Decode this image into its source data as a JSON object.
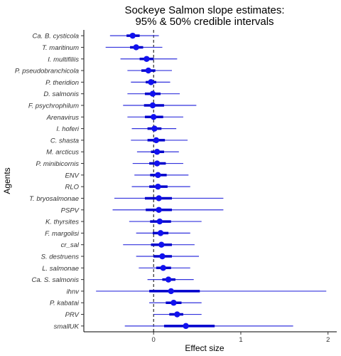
{
  "chart_data": {
    "type": "forest",
    "title_lines": [
      "Sockeye Salmon slope estimates:",
      "95% & 50% credible intervals"
    ],
    "xlabel": "Effect size",
    "ylabel": "Agents",
    "xlim": [
      -0.8,
      2.1
    ],
    "xticks": [
      0,
      1,
      2
    ],
    "reference_line": 0,
    "colors": {
      "point": "#1111ee",
      "thin": "#3333dd",
      "thick": "#0000cc"
    },
    "agents": [
      {
        "name": "Ca. B. cysticola",
        "median": -0.24,
        "ci95": [
          -0.5,
          0.06
        ],
        "ci50": [
          -0.31,
          -0.16
        ]
      },
      {
        "name": "T. maritinum",
        "median": -0.2,
        "ci95": [
          -0.55,
          0.1
        ],
        "ci50": [
          -0.27,
          -0.12
        ]
      },
      {
        "name": "I. multifiliis",
        "median": -0.08,
        "ci95": [
          -0.38,
          0.27
        ],
        "ci50": [
          -0.16,
          0.0
        ]
      },
      {
        "name": "P. pseudobranchicola",
        "median": -0.06,
        "ci95": [
          -0.3,
          0.21
        ],
        "ci50": [
          -0.14,
          0.02
        ]
      },
      {
        "name": "P. theridion",
        "median": -0.03,
        "ci95": [
          -0.26,
          0.19
        ],
        "ci50": [
          -0.09,
          0.03
        ]
      },
      {
        "name": "D. salmonis",
        "median": -0.01,
        "ci95": [
          -0.3,
          0.3
        ],
        "ci50": [
          -0.1,
          0.08
        ]
      },
      {
        "name": "F. psychrophilum",
        "median": -0.01,
        "ci95": [
          -0.35,
          0.49
        ],
        "ci50": [
          -0.11,
          0.12
        ]
      },
      {
        "name": "Arenavirus",
        "median": 0.0,
        "ci95": [
          -0.3,
          0.34
        ],
        "ci50": [
          -0.1,
          0.11
        ]
      },
      {
        "name": "I. hoferi",
        "median": 0.01,
        "ci95": [
          -0.25,
          0.26
        ],
        "ci50": [
          -0.07,
          0.09
        ]
      },
      {
        "name": "C. shasta",
        "median": 0.03,
        "ci95": [
          -0.26,
          0.39
        ],
        "ci50": [
          -0.07,
          0.13
        ]
      },
      {
        "name": "M. arcticus",
        "median": 0.04,
        "ci95": [
          -0.19,
          0.29
        ],
        "ci50": [
          -0.03,
          0.12
        ]
      },
      {
        "name": "P. minibicornis",
        "median": 0.04,
        "ci95": [
          -0.24,
          0.34
        ],
        "ci50": [
          -0.05,
          0.14
        ]
      },
      {
        "name": "ENV",
        "median": 0.05,
        "ci95": [
          -0.22,
          0.4
        ],
        "ci50": [
          -0.04,
          0.15
        ]
      },
      {
        "name": "RLO",
        "median": 0.05,
        "ci95": [
          -0.25,
          0.42
        ],
        "ci50": [
          -0.05,
          0.16
        ]
      },
      {
        "name": "T. bryosalmonae",
        "median": 0.06,
        "ci95": [
          -0.45,
          0.8
        ],
        "ci50": [
          -0.1,
          0.21
        ]
      },
      {
        "name": "PSPV",
        "median": 0.06,
        "ci95": [
          -0.47,
          0.8
        ],
        "ci50": [
          -0.09,
          0.21
        ]
      },
      {
        "name": "K. thyrsites",
        "median": 0.07,
        "ci95": [
          -0.28,
          0.55
        ],
        "ci50": [
          -0.04,
          0.2
        ]
      },
      {
        "name": "F. margolisi",
        "median": 0.08,
        "ci95": [
          -0.2,
          0.42
        ],
        "ci50": [
          -0.01,
          0.17
        ]
      },
      {
        "name": "cr_sal",
        "median": 0.09,
        "ci95": [
          -0.35,
          0.47
        ],
        "ci50": [
          -0.03,
          0.21
        ]
      },
      {
        "name": "S. destruens",
        "median": 0.1,
        "ci95": [
          -0.2,
          0.52
        ],
        "ci50": [
          0.0,
          0.21
        ]
      },
      {
        "name": "L. salmonae",
        "median": 0.11,
        "ci95": [
          -0.17,
          0.42
        ],
        "ci50": [
          0.03,
          0.2
        ]
      },
      {
        "name": "Ca. S. salmonis",
        "median": 0.17,
        "ci95": [
          -0.07,
          0.46
        ],
        "ci50": [
          0.1,
          0.25
        ]
      },
      {
        "name": "ihnv",
        "median": 0.2,
        "ci95": [
          -0.66,
          1.98
        ],
        "ci50": [
          -0.05,
          0.53
        ]
      },
      {
        "name": "P. kabatai",
        "median": 0.23,
        "ci95": [
          -0.05,
          0.55
        ],
        "ci50": [
          0.14,
          0.32
        ]
      },
      {
        "name": "PRV",
        "median": 0.27,
        "ci95": [
          0.0,
          0.55
        ],
        "ci50": [
          0.18,
          0.34
        ]
      },
      {
        "name": "smallUK",
        "median": 0.37,
        "ci95": [
          -0.33,
          1.6
        ],
        "ci50": [
          0.12,
          0.7
        ]
      }
    ]
  }
}
